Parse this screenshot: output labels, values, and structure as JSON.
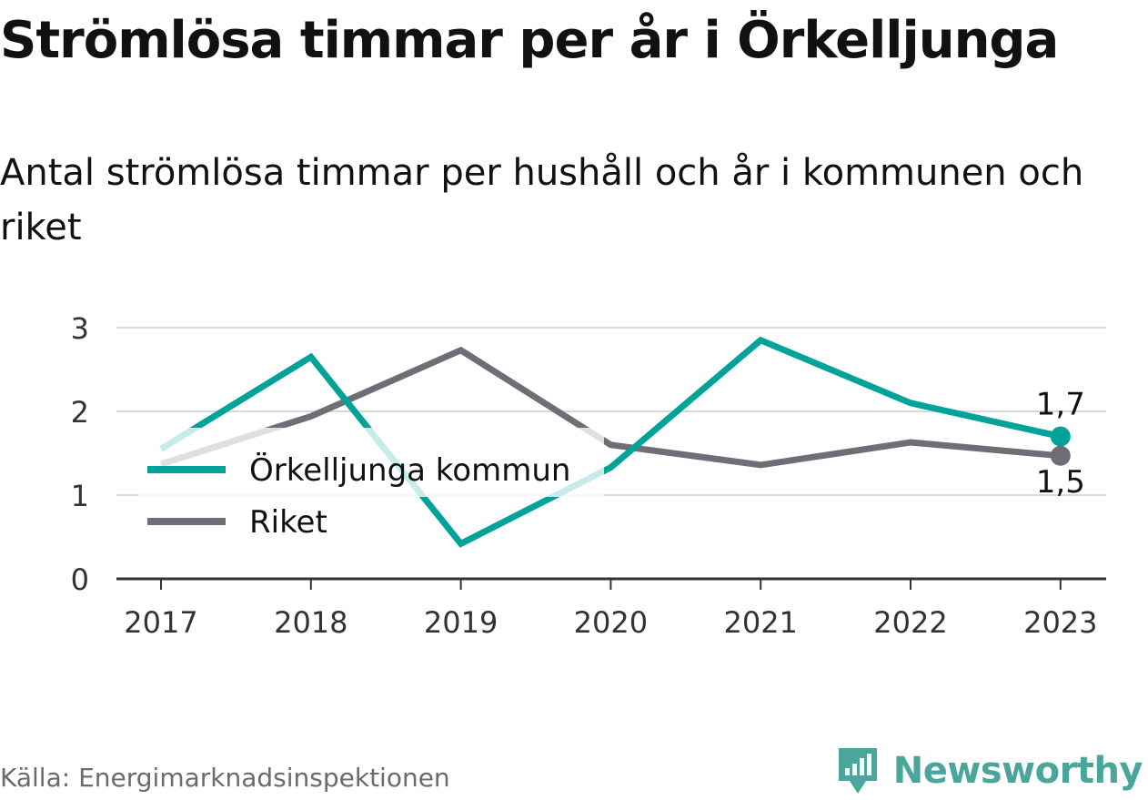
{
  "header": {
    "title": "Strömlösa timmar per år i Örkelljunga",
    "subtitle": "Antal strömlösa timmar per hushåll och år i kommunen och riket"
  },
  "footer": {
    "source": "Källa: Energimarknadsinspektionen",
    "brand": "Newsworthy",
    "brand_icon": "newsworthy-logo-icon"
  },
  "colors": {
    "kommun": "#00a29a",
    "kommun_faded": "#c9ecea",
    "riket": "#6f6e76",
    "riket_faded": "#e0e0e3",
    "grid": "#d9d9d9",
    "axis": "#333333",
    "brand": "#4aa69b"
  },
  "chart_data": {
    "type": "line",
    "title": "Strömlösa timmar per år i Örkelljunga",
    "subtitle": "Antal strömlösa timmar per hushåll och år i kommunen och riket",
    "x": [
      "2017",
      "2018",
      "2019",
      "2020",
      "2021",
      "2022",
      "2023"
    ],
    "ylim": [
      0,
      3
    ],
    "yticks": [
      0,
      1,
      2,
      3
    ],
    "ytick_labels": [
      "0",
      "1",
      "2",
      "3"
    ],
    "grid": true,
    "legend_position": "middle-left",
    "series": [
      {
        "name": "Örkelljunga kommun",
        "key": "kommun",
        "values": [
          1.55,
          2.65,
          0.42,
          1.33,
          2.85,
          2.1,
          1.7
        ],
        "end_label": "1,7"
      },
      {
        "name": "Riket",
        "key": "riket",
        "values": [
          1.37,
          1.94,
          2.73,
          1.6,
          1.36,
          1.63,
          1.47
        ],
        "end_label": "1,5"
      }
    ]
  }
}
